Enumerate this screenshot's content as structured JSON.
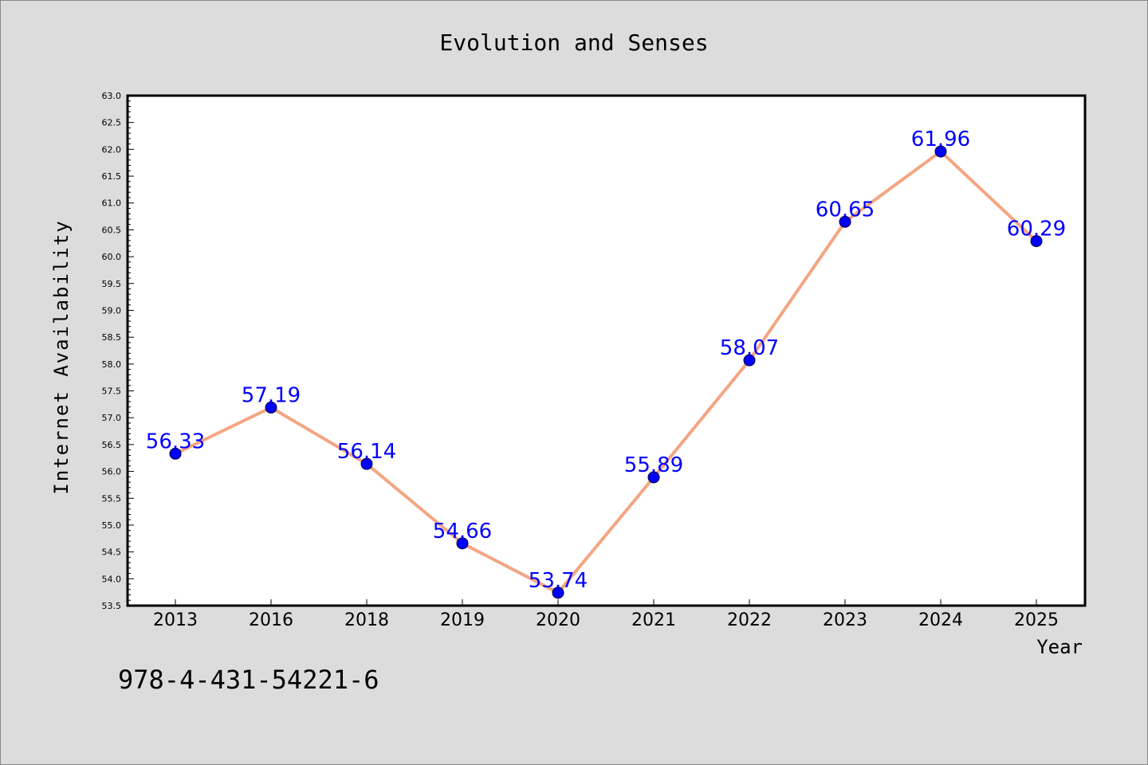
{
  "chart_data": {
    "type": "line",
    "title": "Evolution and Senses",
    "xlabel": "Year",
    "ylabel": "Internet Availability",
    "categories": [
      "2013",
      "2016",
      "2018",
      "2019",
      "2020",
      "2021",
      "2022",
      "2023",
      "2024",
      "2025"
    ],
    "series": [
      {
        "values": [
          56.33,
          57.19,
          56.14,
          54.66,
          53.74,
          55.89,
          58.07,
          60.65,
          61.96,
          60.29
        ],
        "value_labels": [
          "56.33",
          "57.19",
          "56.14",
          "54.66",
          "53.74",
          "55.89",
          "58.07",
          "60.65",
          "61.96",
          "60.29"
        ],
        "line_color": "#f4a582",
        "marker_color": "#0000ff",
        "label_color": "#0000ff"
      }
    ],
    "ylim": [
      53.5,
      63.0
    ],
    "yticks": [
      "53.5",
      "54.0",
      "54.5",
      "55.0",
      "55.5",
      "56.0",
      "56.5",
      "57.0",
      "57.5",
      "58.0",
      "58.5",
      "59.0",
      "59.5",
      "60.0",
      "60.5",
      "61.0",
      "61.5",
      "62.0",
      "62.5",
      "63.0"
    ],
    "grid": false,
    "legend": "none",
    "background_color": "#dcdcdc",
    "plot_background_color": "#ffffff"
  },
  "footer": {
    "isbn": "978-4-431-54221-6"
  }
}
